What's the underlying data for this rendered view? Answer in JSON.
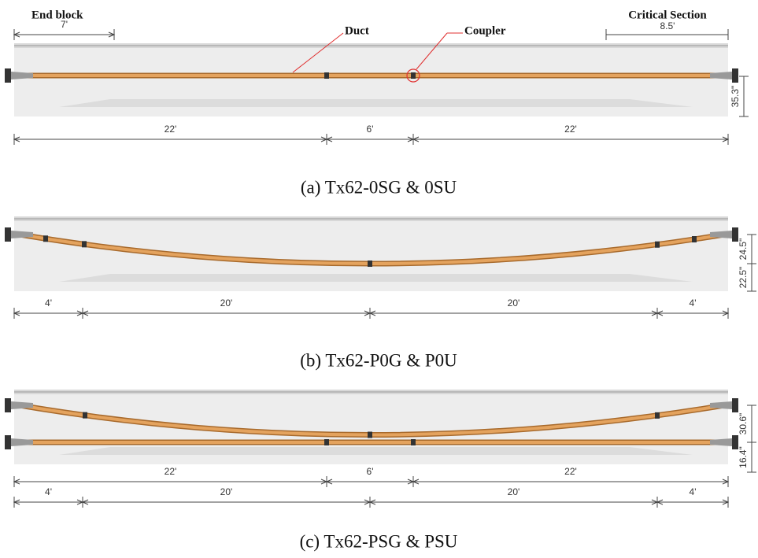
{
  "panel_a": {
    "end_block": "End block",
    "critical_section": "Critical Section",
    "duct": "Duct",
    "coupler": "Coupler",
    "top_dims": [
      "7'",
      "8.5'"
    ],
    "bottom_dims": [
      "22'",
      "6'",
      "22'"
    ],
    "depths": [
      "35.3\""
    ],
    "caption": "(a) Tx62-0SG & 0SU"
  },
  "panel_b": {
    "dims": [
      "4'",
      "20'",
      "20'",
      "4'"
    ],
    "depths": [
      "24.5\"",
      "22.5\""
    ],
    "caption": "(b) Tx62-P0G & P0U"
  },
  "panel_c": {
    "dims_upper": [
      "22'",
      "6'",
      "22'"
    ],
    "dims_lower": [
      "4'",
      "20'",
      "20'",
      "4'"
    ],
    "depths": [
      "30.6\"",
      "16.4\""
    ],
    "caption": "(c) Tx62-PSG & PSU"
  }
}
